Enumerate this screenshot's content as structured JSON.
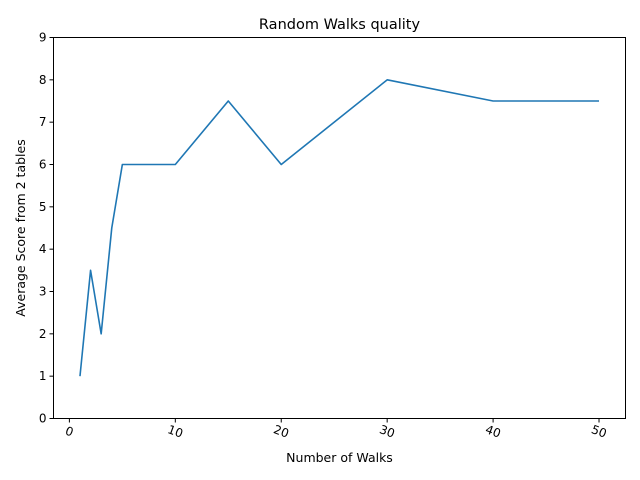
{
  "chart_data": {
    "type": "line",
    "title": "Random Walks quality",
    "xlabel": "Number of Walks",
    "ylabel": "Average Score from 2 tables",
    "xlim": [
      -1.5,
      52.5
    ],
    "ylim": [
      0,
      9
    ],
    "xticks": [
      0,
      10,
      20,
      30,
      40,
      50
    ],
    "yticks": [
      0,
      1,
      2,
      3,
      4,
      5,
      6,
      7,
      8,
      9
    ],
    "x_tick_rotation": 20,
    "grid": false,
    "legend": "none",
    "series": [
      {
        "color": "#1f77b4",
        "x": [
          1,
          2,
          3,
          4,
          5,
          10,
          15,
          20,
          30,
          40,
          50
        ],
        "y": [
          1,
          3.5,
          2,
          4.5,
          6,
          6,
          7.5,
          6,
          8,
          7.5,
          7.5
        ]
      }
    ]
  }
}
